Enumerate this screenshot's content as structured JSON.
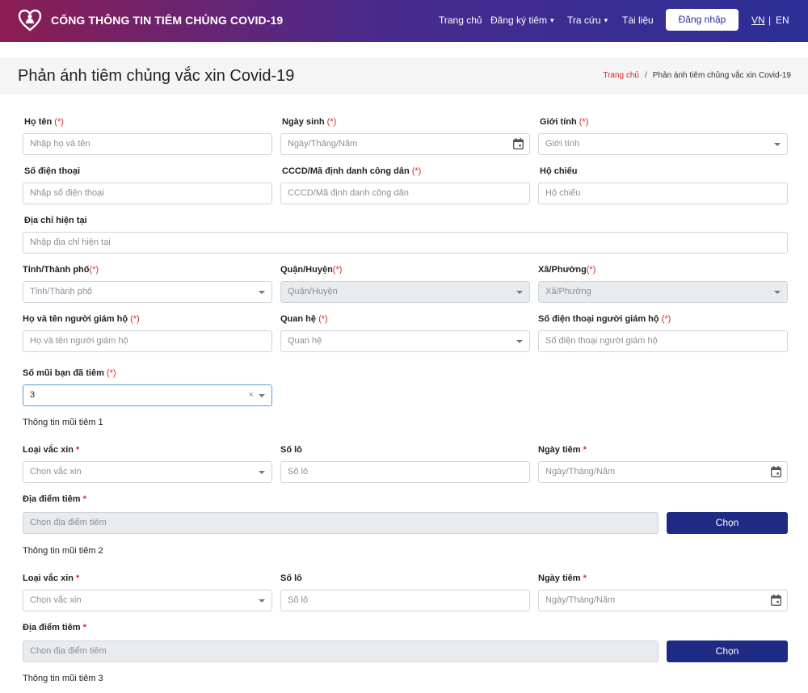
{
  "header": {
    "brand": "CỔNG THÔNG TIN TIÊM CHỦNG COVID-19",
    "nav": [
      "Trang chủ",
      "Đăng ký tiêm",
      "Tra cứu",
      "Tài liệu"
    ],
    "login": "Đăng nhập",
    "lang_vn": "VN",
    "lang_sep": "|",
    "lang_en": "EN"
  },
  "page": {
    "title": "Phản ánh tiêm chủng vắc xin Covid-19",
    "breadcrumb_home": "Trang chủ",
    "breadcrumb_sep": "/",
    "breadcrumb_current": "Phản ánh tiêm chủng vắc xin Covid-19"
  },
  "form": {
    "required_mark": "(*)",
    "star": "*",
    "full_name": {
      "label": "Họ tên",
      "placeholder": "Nhập họ và tên"
    },
    "dob": {
      "label": "Ngày sinh",
      "placeholder": "Ngày/Tháng/Năm"
    },
    "gender": {
      "label": "Giới tính",
      "placeholder": "Giới tính"
    },
    "phone": {
      "label": "Số điện thoại",
      "placeholder": "Nhập số điện thoại"
    },
    "id_card": {
      "label": "CCCD/Mã định danh công dân",
      "placeholder": "CCCD/Mã định danh công dân"
    },
    "passport": {
      "label": "Hộ chiếu",
      "placeholder": "Hộ chiếu"
    },
    "address": {
      "label": "Địa chỉ hiện tại",
      "placeholder": "Nhập địa chỉ hiện tại"
    },
    "province": {
      "label": "Tỉnh/Thành phố",
      "placeholder": "Tỉnh/Thành phố"
    },
    "district": {
      "label": "Quận/Huyện",
      "placeholder": "Quận/Huyện"
    },
    "ward": {
      "label": "Xã/Phường",
      "placeholder": "Xã/Phường"
    },
    "guardian_name": {
      "label": "Họ và tên người giám hộ",
      "placeholder": "Họ và tên người giám hộ"
    },
    "relation": {
      "label": "Quan hệ",
      "placeholder": "Quan hệ"
    },
    "guardian_phone": {
      "label": "Số điện thoại người giám hộ",
      "placeholder": "Số điện thoại người giám hộ"
    },
    "doses": {
      "label": "Số mũi bạn đã tiêm",
      "value": "3",
      "clear": "×"
    },
    "dose_sections": [
      {
        "title": "Thông tin mũi tiêm 1",
        "vaccine_label": "Loại vắc xin",
        "vaccine_placeholder": "Chọn vắc xin",
        "lot_label": "Số lô",
        "lot_placeholder": "Số lô",
        "date_label": "Ngày tiêm",
        "date_placeholder": "Ngày/Tháng/Năm",
        "place_label": "Địa điểm tiêm",
        "place_placeholder": "Chọn địa điểm tiêm",
        "choose": "Chọn"
      },
      {
        "title": "Thông tin mũi tiêm 2",
        "vaccine_label": "Loại vắc xin",
        "vaccine_placeholder": "Chọn vắc xin",
        "lot_label": "Số lô",
        "lot_placeholder": "Số lô",
        "date_label": "Ngày tiêm",
        "date_placeholder": "Ngày/Tháng/Năm",
        "place_label": "Địa điểm tiêm",
        "place_placeholder": "Chọn địa điểm tiêm",
        "choose": "Chọn"
      },
      {
        "title": "Thông tin mũi tiêm 3"
      }
    ]
  }
}
